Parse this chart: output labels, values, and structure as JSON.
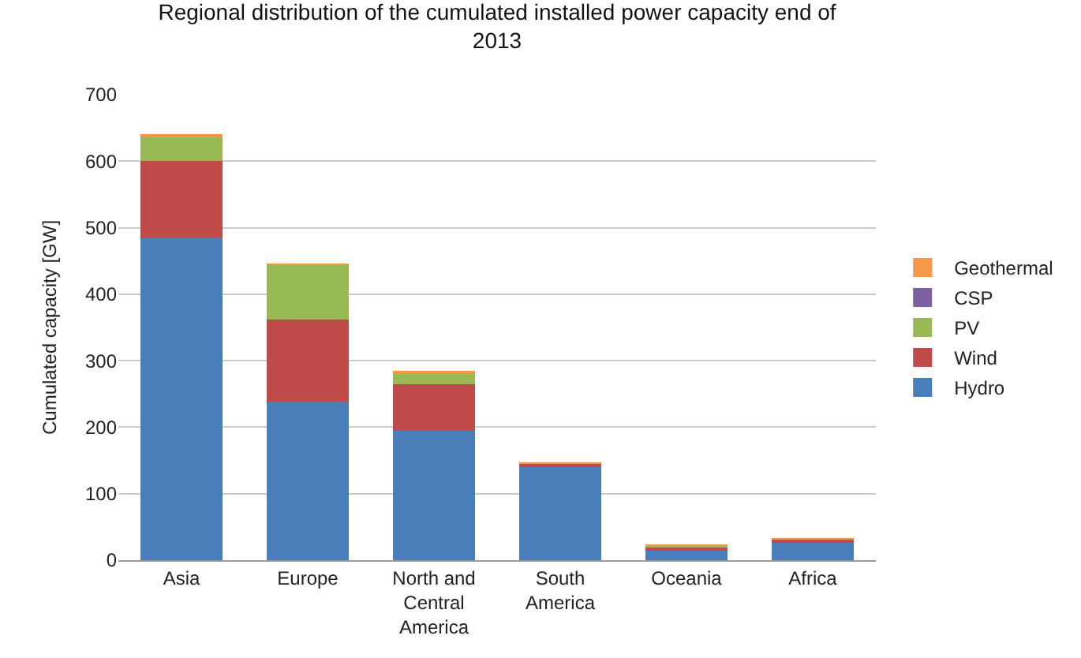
{
  "chart_data": {
    "type": "bar",
    "title": "Regional distribution of the cumulated installed power capacity end of 2013",
    "ylabel": "Cumulated capacity [GW]",
    "categories": [
      "Asia",
      "Europe",
      "North and Central America",
      "South America",
      "Oceania",
      "Africa"
    ],
    "stacked": true,
    "ylim": [
      0,
      700
    ],
    "yticks": [
      0,
      100,
      200,
      300,
      400,
      500,
      600,
      700
    ],
    "grid": "y",
    "legend": "right",
    "series": [
      {
        "name": "Hydro",
        "color": "#4a7ebb",
        "values": [
          485,
          239,
          194,
          142,
          15,
          28
        ]
      },
      {
        "name": "Wind",
        "color": "#be4b48",
        "values": [
          115,
          123,
          71,
          4,
          4,
          3
        ]
      },
      {
        "name": "PV",
        "color": "#98b954",
        "values": [
          37,
          82,
          15,
          null,
          3,
          null
        ]
      },
      {
        "name": "CSP",
        "color": "#7d60a0",
        "values": [
          null,
          null,
          null,
          null,
          null,
          null
        ]
      },
      {
        "name": "Geothermal",
        "color": "#f79646",
        "values": [
          2,
          1,
          3,
          1,
          1,
          1
        ]
      }
    ]
  }
}
